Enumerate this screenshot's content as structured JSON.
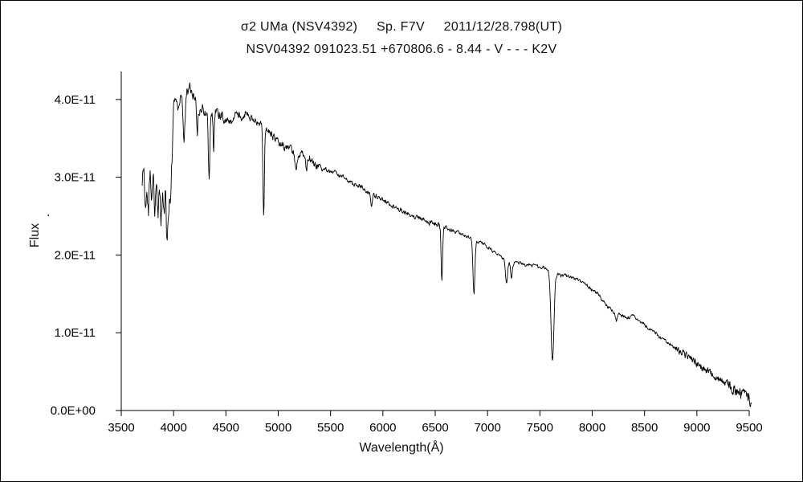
{
  "window": {
    "background": "#ffffff",
    "border_color": "#000000",
    "line_color": "#000000"
  },
  "chart_data": {
    "type": "line",
    "title": "σ2 UMa (NSV4392)     Sp. F7V     2011/12/28.798(UT)",
    "subtitle": "NSV04392 091023.51 +670806.6 - 8.44 - V - - - K2V",
    "xlabel": "Wavelength(Å)",
    "ylabel": "Flux",
    "ylabel_dot": ".",
    "xlim": [
      3500,
      9500
    ],
    "ylim_e11": [
      0,
      4.36
    ],
    "flux_scale_note": "y tick labels are in units of E-11 as printed",
    "grid": false,
    "legend": "none",
    "x_ticks": [
      3500,
      4000,
      4500,
      5000,
      5500,
      6000,
      6500,
      7000,
      7500,
      8000,
      8500,
      9000,
      9500
    ],
    "y_ticks": [
      {
        "value": 0,
        "label": "0.0E+00"
      },
      {
        "value": 1,
        "label": "1.0E-11"
      },
      {
        "value": 2,
        "label": "2.0E-11"
      },
      {
        "value": 3,
        "label": "3.0E-11"
      },
      {
        "value": 4,
        "label": "4.0E-11"
      }
    ],
    "data_range": [
      3700,
      9520
    ],
    "sample_step": 4,
    "continuum_points": [
      [
        3700,
        2.95
      ],
      [
        3715,
        3.15
      ],
      [
        3730,
        2.6
      ],
      [
        3745,
        2.9
      ],
      [
        3760,
        2.55
      ],
      [
        3775,
        3.0
      ],
      [
        3790,
        2.65
      ],
      [
        3805,
        3.05
      ],
      [
        3820,
        2.6
      ],
      [
        3835,
        2.95
      ],
      [
        3850,
        2.5
      ],
      [
        3865,
        2.85
      ],
      [
        3880,
        2.45
      ],
      [
        3895,
        2.75
      ],
      [
        3910,
        2.55
      ],
      [
        3925,
        2.9
      ],
      [
        3940,
        2.4
      ],
      [
        3955,
        2.65
      ],
      [
        3970,
        2.75
      ],
      [
        3985,
        3.3
      ],
      [
        4000,
        3.9
      ],
      [
        4015,
        4.05
      ],
      [
        4040,
        3.9
      ],
      [
        4070,
        4.05
      ],
      [
        4100,
        3.85
      ],
      [
        4130,
        4.1
      ],
      [
        4160,
        4.15
      ],
      [
        4190,
        4.05
      ],
      [
        4220,
        3.95
      ],
      [
        4250,
        3.85
      ],
      [
        4280,
        3.9
      ],
      [
        4310,
        3.8
      ],
      [
        4350,
        3.75
      ],
      [
        4400,
        3.85
      ],
      [
        4450,
        3.8
      ],
      [
        4500,
        3.75
      ],
      [
        4550,
        3.7
      ],
      [
        4600,
        3.85
      ],
      [
        4650,
        3.78
      ],
      [
        4700,
        3.85
      ],
      [
        4750,
        3.75
      ],
      [
        4800,
        3.72
      ],
      [
        4850,
        3.7
      ],
      [
        4900,
        3.62
      ],
      [
        4950,
        3.52
      ],
      [
        5000,
        3.45
      ],
      [
        5050,
        3.4
      ],
      [
        5100,
        3.38
      ],
      [
        5150,
        3.32
      ],
      [
        5200,
        3.3
      ],
      [
        5250,
        3.3
      ],
      [
        5300,
        3.25
      ],
      [
        5350,
        3.15
      ],
      [
        5400,
        3.12
      ],
      [
        5450,
        3.1
      ],
      [
        5500,
        3.07
      ],
      [
        5550,
        3.05
      ],
      [
        5600,
        3.0
      ],
      [
        5650,
        2.97
      ],
      [
        5700,
        2.92
      ],
      [
        5750,
        2.9
      ],
      [
        5800,
        2.87
      ],
      [
        5850,
        2.82
      ],
      [
        5900,
        2.77
      ],
      [
        5950,
        2.75
      ],
      [
        6000,
        2.72
      ],
      [
        6050,
        2.67
      ],
      [
        6100,
        2.62
      ],
      [
        6150,
        2.6
      ],
      [
        6200,
        2.57
      ],
      [
        6250,
        2.52
      ],
      [
        6300,
        2.5
      ],
      [
        6350,
        2.47
      ],
      [
        6400,
        2.45
      ],
      [
        6450,
        2.42
      ],
      [
        6500,
        2.4
      ],
      [
        6550,
        2.37
      ],
      [
        6600,
        2.35
      ],
      [
        6650,
        2.32
      ],
      [
        6700,
        2.3
      ],
      [
        6750,
        2.27
      ],
      [
        6800,
        2.25
      ],
      [
        6850,
        2.2
      ],
      [
        6900,
        2.17
      ],
      [
        6950,
        2.15
      ],
      [
        7000,
        2.1
      ],
      [
        7050,
        2.05
      ],
      [
        7100,
        2.0
      ],
      [
        7150,
        1.95
      ],
      [
        7200,
        1.9
      ],
      [
        7250,
        1.9
      ],
      [
        7300,
        1.9
      ],
      [
        7350,
        1.88
      ],
      [
        7400,
        1.87
      ],
      [
        7450,
        1.86
      ],
      [
        7500,
        1.85
      ],
      [
        7550,
        1.83
      ],
      [
        7600,
        1.8
      ],
      [
        7650,
        1.76
      ],
      [
        7700,
        1.73
      ],
      [
        7750,
        1.73
      ],
      [
        7800,
        1.7
      ],
      [
        7850,
        1.68
      ],
      [
        7900,
        1.65
      ],
      [
        7950,
        1.6
      ],
      [
        8000,
        1.55
      ],
      [
        8050,
        1.5
      ],
      [
        8100,
        1.42
      ],
      [
        8150,
        1.33
      ],
      [
        8200,
        1.27
      ],
      [
        8250,
        1.23
      ],
      [
        8300,
        1.21
      ],
      [
        8350,
        1.2
      ],
      [
        8400,
        1.21
      ],
      [
        8450,
        1.17
      ],
      [
        8500,
        1.1
      ],
      [
        8550,
        1.05
      ],
      [
        8600,
        1.0
      ],
      [
        8650,
        0.95
      ],
      [
        8700,
        0.9
      ],
      [
        8750,
        0.85
      ],
      [
        8800,
        0.8
      ],
      [
        8850,
        0.75
      ],
      [
        8900,
        0.7
      ],
      [
        8950,
        0.65
      ],
      [
        9000,
        0.6
      ],
      [
        9050,
        0.55
      ],
      [
        9100,
        0.5
      ],
      [
        9150,
        0.45
      ],
      [
        9200,
        0.4
      ],
      [
        9250,
        0.37
      ],
      [
        9300,
        0.33
      ],
      [
        9350,
        0.28
      ],
      [
        9400,
        0.25
      ],
      [
        9450,
        0.2
      ],
      [
        9500,
        0.15
      ],
      [
        9520,
        0.12
      ]
    ],
    "absorption_lines": [
      {
        "center": 3933,
        "floor": 2.3,
        "sigma": 6
      },
      {
        "center": 4101,
        "floor": 3.5,
        "sigma": 8
      },
      {
        "center": 4227,
        "floor": 3.55,
        "sigma": 5
      },
      {
        "center": 4340,
        "floor": 2.95,
        "sigma": 7
      },
      {
        "center": 4383,
        "floor": 3.35,
        "sigma": 5
      },
      {
        "center": 4861,
        "floor": 2.52,
        "sigma": 7
      },
      {
        "center": 5170,
        "floor": 3.08,
        "sigma": 8
      },
      {
        "center": 5270,
        "floor": 3.1,
        "sigma": 6
      },
      {
        "center": 5890,
        "floor": 2.6,
        "sigma": 7
      },
      {
        "center": 6563,
        "floor": 1.7,
        "sigma": 7
      },
      {
        "center": 6870,
        "floor": 1.5,
        "sigma": 9
      },
      {
        "center": 7180,
        "floor": 1.63,
        "sigma": 10
      },
      {
        "center": 7230,
        "floor": 1.7,
        "sigma": 8
      },
      {
        "center": 7620,
        "floor": 0.66,
        "sigma": 14
      },
      {
        "center": 8230,
        "floor": 1.16,
        "sigma": 9
      }
    ],
    "noise_bands": [
      {
        "from": 3700,
        "to": 3990,
        "amp": 0.1
      },
      {
        "from": 3990,
        "to": 4500,
        "amp": 0.055
      },
      {
        "from": 4500,
        "to": 5400,
        "amp": 0.04
      },
      {
        "from": 5400,
        "to": 6600,
        "amp": 0.027
      },
      {
        "from": 6600,
        "to": 8800,
        "amp": 0.02
      },
      {
        "from": 8800,
        "to": 9300,
        "amp": 0.04
      },
      {
        "from": 9300,
        "to": 9525,
        "amp": 0.07
      }
    ]
  }
}
